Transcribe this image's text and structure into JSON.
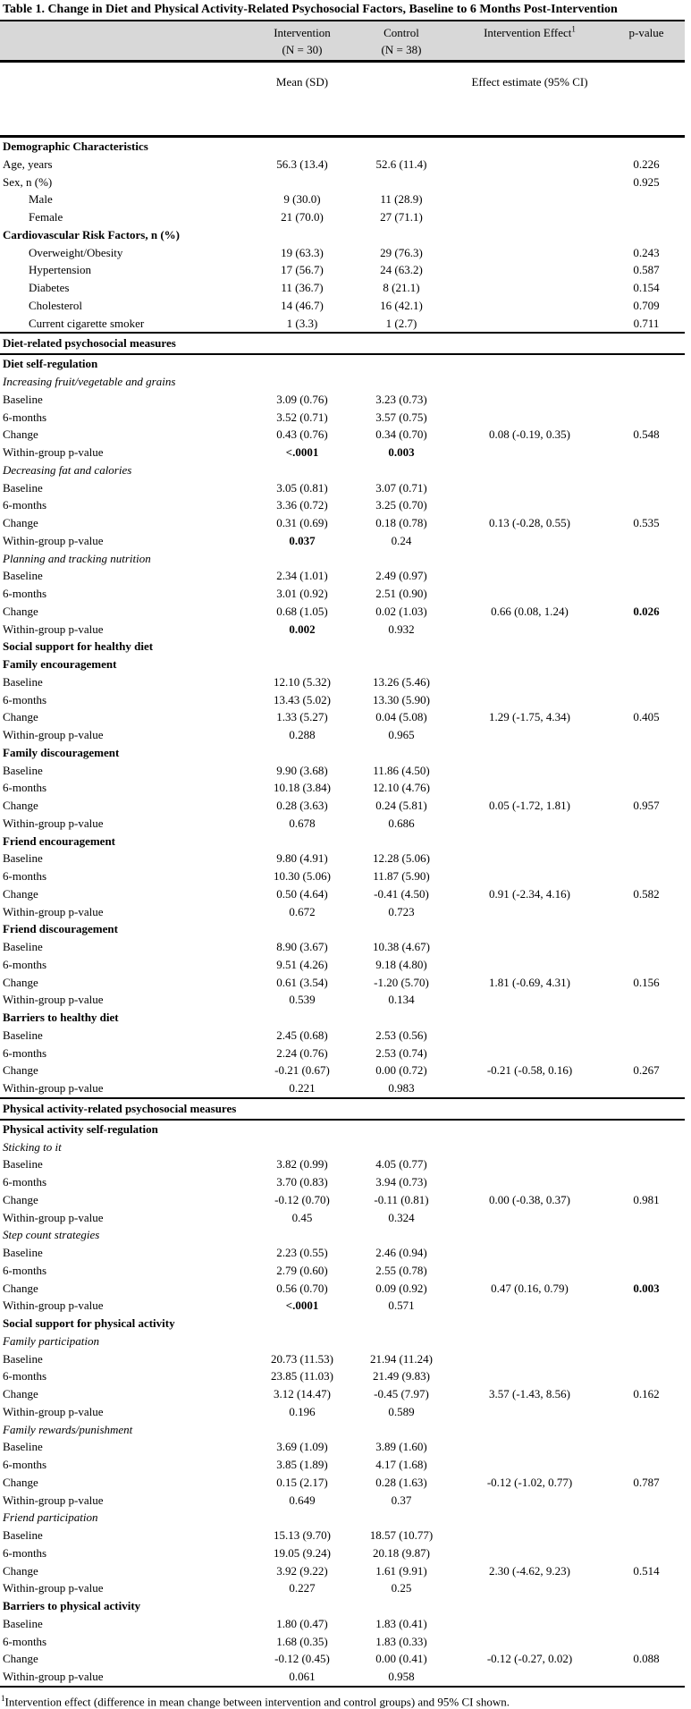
{
  "title": "Table 1. Change in Diet and Physical Activity-Related Psychosocial Factors, Baseline to 6 Months Post-Intervention",
  "colors": {
    "header_bg": "#d8d8d8",
    "border": "#000000",
    "text": "#000000",
    "page_bg": "#ffffff"
  },
  "header": {
    "intervention_line1": "Intervention",
    "intervention_line2": "(N = 30)",
    "control_line1": "Control",
    "control_line2": "(N = 38)",
    "effect_label": "Intervention Effect",
    "effect_sup": "1",
    "pvalue_label": "p-value",
    "mean_sd_label": "Mean (SD)",
    "effect_estimate_label": "Effect estimate (95% CI)"
  },
  "rows": [
    {
      "label": "Demographic Characteristics",
      "type": "bold"
    },
    {
      "label": "Age, years",
      "type": "plain",
      "i": "56.3 (13.4)",
      "c": "52.6 (11.4)",
      "p": "0.226"
    },
    {
      "label": "Sex, n (%)",
      "type": "plain",
      "p": "0.925"
    },
    {
      "label": "Male",
      "type": "indent",
      "i": "9 (30.0)",
      "c": "11 (28.9)"
    },
    {
      "label": "Female",
      "type": "indent",
      "i": "21 (70.0)",
      "c": "27 (71.1)"
    },
    {
      "label": "Cardiovascular Risk Factors, n (%)",
      "type": "bold"
    },
    {
      "label": "Overweight/Obesity",
      "type": "indent",
      "i": "19 (63.3)",
      "c": "29 (76.3)",
      "p": "0.243"
    },
    {
      "label": "Hypertension",
      "type": "indent",
      "i": "17 (56.7)",
      "c": "24 (63.2)",
      "p": "0.587"
    },
    {
      "label": "Diabetes",
      "type": "indent",
      "i": "11 (36.7)",
      "c": "8 (21.1)",
      "p": "0.154"
    },
    {
      "label": "Cholesterol",
      "type": "indent",
      "i": "14 (46.7)",
      "c": "16 (42.1)",
      "p": "0.709"
    },
    {
      "label": "Current cigarette smoker",
      "type": "indent",
      "i": "1 (3.3)",
      "c": "1 (2.7)",
      "p": "0.711"
    },
    {
      "label": "Diet-related psychosocial measures",
      "type": "section"
    },
    {
      "label": "Diet self-regulation",
      "type": "bold"
    },
    {
      "label": "Increasing fruit/vegetable and grains",
      "type": "italic"
    },
    {
      "label": "Baseline",
      "type": "plain",
      "i": "3.09 (0.76)",
      "c": "3.23 (0.73)"
    },
    {
      "label": "6-months",
      "type": "plain",
      "i": "3.52 (0.71)",
      "c": "3.57 (0.75)"
    },
    {
      "label": "Change",
      "type": "plain",
      "i": "0.43 (0.76)",
      "c": "0.34 (0.70)",
      "e": "0.08 (-0.19, 0.35)",
      "p": "0.548"
    },
    {
      "label": "Within-group p-value",
      "type": "plain",
      "i": "<.0001",
      "c": "0.003",
      "bi": true,
      "bc": true
    },
    {
      "label": "Decreasing fat and calories",
      "type": "italic"
    },
    {
      "label": "Baseline",
      "type": "plain",
      "i": "3.05 (0.81)",
      "c": "3.07 (0.71)"
    },
    {
      "label": "6-months",
      "type": "plain",
      "i": "3.36 (0.72)",
      "c": "3.25 (0.70)"
    },
    {
      "label": "Change",
      "type": "plain",
      "i": "0.31 (0.69)",
      "c": "0.18 (0.78)",
      "e": "0.13 (-0.28, 0.55)",
      "p": "0.535"
    },
    {
      "label": "Within-group p-value",
      "type": "plain",
      "i": "0.037",
      "c": "0.24",
      "bi": true
    },
    {
      "label": "Planning and tracking nutrition",
      "type": "italic"
    },
    {
      "label": "Baseline",
      "type": "plain",
      "i": "2.34 (1.01)",
      "c": "2.49 (0.97)"
    },
    {
      "label": "6-months",
      "type": "plain",
      "i": "3.01 (0.92)",
      "c": "2.51 (0.90)"
    },
    {
      "label": "Change",
      "type": "plain",
      "i": "0.68 (1.05)",
      "c": "0.02 (1.03)",
      "e": "0.66 (0.08, 1.24)",
      "p": "0.026",
      "bp": true
    },
    {
      "label": "Within-group p-value",
      "type": "plain",
      "i": "0.002",
      "c": "0.932",
      "bi": true
    },
    {
      "label": "Social support for healthy diet",
      "type": "bold"
    },
    {
      "label": "Family encouragement",
      "type": "bold"
    },
    {
      "label": "Baseline",
      "type": "plain",
      "i": "12.10 (5.32)",
      "c": "13.26 (5.46)"
    },
    {
      "label": "6-months",
      "type": "plain",
      "i": "13.43 (5.02)",
      "c": "13.30 (5.90)"
    },
    {
      "label": "Change",
      "type": "plain",
      "i": "1.33 (5.27)",
      "c": "0.04 (5.08)",
      "e": "1.29 (-1.75, 4.34)",
      "p": "0.405"
    },
    {
      "label": "Within-group p-value",
      "type": "plain",
      "i": "0.288",
      "c": "0.965"
    },
    {
      "label": "Family discouragement",
      "type": "bold"
    },
    {
      "label": "Baseline",
      "type": "plain",
      "i": "9.90 (3.68)",
      "c": "11.86 (4.50)"
    },
    {
      "label": "6-months",
      "type": "plain",
      "i": "10.18 (3.84)",
      "c": "12.10 (4.76)"
    },
    {
      "label": "Change",
      "type": "plain",
      "i": "0.28 (3.63)",
      "c": "0.24 (5.81)",
      "e": "0.05 (-1.72, 1.81)",
      "p": "0.957"
    },
    {
      "label": "Within-group p-value",
      "type": "plain",
      "i": "0.678",
      "c": "0.686"
    },
    {
      "label": "Friend encouragement",
      "type": "bold"
    },
    {
      "label": "Baseline",
      "type": "plain",
      "i": "9.80 (4.91)",
      "c": "12.28 (5.06)"
    },
    {
      "label": "6-months",
      "type": "plain",
      "i": "10.30 (5.06)",
      "c": "11.87 (5.90)"
    },
    {
      "label": "Change",
      "type": "plain",
      "i": "0.50 (4.64)",
      "c": "-0.41 (4.50)",
      "e": "0.91 (-2.34, 4.16)",
      "p": "0.582"
    },
    {
      "label": "Within-group p-value",
      "type": "plain",
      "i": "0.672",
      "c": "0.723"
    },
    {
      "label": "Friend discouragement",
      "type": "bold"
    },
    {
      "label": "Baseline",
      "type": "plain",
      "i": "8.90 (3.67)",
      "c": "10.38 (4.67)"
    },
    {
      "label": "6-months",
      "type": "plain",
      "i": "9.51 (4.26)",
      "c": "9.18 (4.80)"
    },
    {
      "label": "Change",
      "type": "plain",
      "i": "0.61 (3.54)",
      "c": "-1.20 (5.70)",
      "e": "1.81 (-0.69, 4.31)",
      "p": "0.156"
    },
    {
      "label": "Within-group p-value",
      "type": "plain",
      "i": "0.539",
      "c": "0.134"
    },
    {
      "label": "Barriers to healthy diet",
      "type": "bold"
    },
    {
      "label": "Baseline",
      "type": "plain",
      "i": "2.45 (0.68)",
      "c": "2.53 (0.56)"
    },
    {
      "label": "6-months",
      "type": "plain",
      "i": "2.24 (0.76)",
      "c": "2.53 (0.74)"
    },
    {
      "label": "Change",
      "type": "plain",
      "i": "-0.21 (0.67)",
      "c": "0.00 (0.72)",
      "e": "-0.21 (-0.58, 0.16)",
      "p": "0.267"
    },
    {
      "label": "Within-group p-value",
      "type": "plain",
      "i": "0.221",
      "c": "0.983"
    },
    {
      "label": "Physical activity-related psychosocial measures",
      "type": "section"
    },
    {
      "label": "Physical activity self-regulation",
      "type": "bold"
    },
    {
      "label": "Sticking to it",
      "type": "italic"
    },
    {
      "label": "Baseline",
      "type": "plain",
      "i": "3.82 (0.99)",
      "c": "4.05 (0.77)"
    },
    {
      "label": "6-months",
      "type": "plain",
      "i": "3.70 (0.83)",
      "c": "3.94 (0.73)"
    },
    {
      "label": "Change",
      "type": "plain",
      "i": "-0.12 (0.70)",
      "c": "-0.11 (0.81)",
      "e": "0.00 (-0.38, 0.37)",
      "p": "0.981"
    },
    {
      "label": "Within-group p-value",
      "type": "plain",
      "i": "0.45",
      "c": "0.324"
    },
    {
      "label": "Step count strategies",
      "type": "italic"
    },
    {
      "label": "Baseline",
      "type": "plain",
      "i": "2.23 (0.55)",
      "c": "2.46 (0.94)"
    },
    {
      "label": "6-months",
      "type": "plain",
      "i": "2.79 (0.60)",
      "c": "2.55 (0.78)"
    },
    {
      "label": "Change",
      "type": "plain",
      "i": "0.56 (0.70)",
      "c": "0.09 (0.92)",
      "e": "0.47 (0.16, 0.79)",
      "p": "0.003",
      "bp": true
    },
    {
      "label": "Within-group p-value",
      "type": "plain",
      "i": "<.0001",
      "c": "0.571",
      "bi": true
    },
    {
      "label": "Social support for physical activity",
      "type": "bold"
    },
    {
      "label": "Family participation",
      "type": "italic"
    },
    {
      "label": "Baseline",
      "type": "plain",
      "i": "20.73 (11.53)",
      "c": "21.94 (11.24)"
    },
    {
      "label": "6-months",
      "type": "plain",
      "i": "23.85 (11.03)",
      "c": "21.49 (9.83)"
    },
    {
      "label": "Change",
      "type": "plain",
      "i": "3.12 (14.47)",
      "c": "-0.45 (7.97)",
      "e": "3.57 (-1.43, 8.56)",
      "p": "0.162"
    },
    {
      "label": "Within-group p-value",
      "type": "plain",
      "i": "0.196",
      "c": "0.589"
    },
    {
      "label": "Family rewards/punishment",
      "type": "italic"
    },
    {
      "label": "Baseline",
      "type": "plain",
      "i": "3.69 (1.09)",
      "c": "3.89 (1.60)"
    },
    {
      "label": "6-months",
      "type": "plain",
      "i": "3.85 (1.89)",
      "c": "4.17 (1.68)"
    },
    {
      "label": "Change",
      "type": "plain",
      "i": "0.15 (2.17)",
      "c": "0.28 (1.63)",
      "e": "-0.12 (-1.02, 0.77)",
      "p": "0.787"
    },
    {
      "label": "Within-group p-value",
      "type": "plain",
      "i": "0.649",
      "c": "0.37"
    },
    {
      "label": "Friend participation",
      "type": "italic"
    },
    {
      "label": "Baseline",
      "type": "plain",
      "i": "15.13 (9.70)",
      "c": "18.57 (10.77)"
    },
    {
      "label": "6-months",
      "type": "plain",
      "i": "19.05 (9.24)",
      "c": "20.18 (9.87)"
    },
    {
      "label": "Change",
      "type": "plain",
      "i": "3.92 (9.22)",
      "c": "1.61 (9.91)",
      "e": "2.30 (-4.62, 9.23)",
      "p": "0.514"
    },
    {
      "label": "Within-group p-value",
      "type": "plain",
      "i": "0.227",
      "c": "0.25"
    },
    {
      "label": "Barriers to physical activity",
      "type": "bold"
    },
    {
      "label": "Baseline",
      "type": "plain",
      "i": "1.80 (0.47)",
      "c": "1.83 (0.41)"
    },
    {
      "label": "6-months",
      "type": "plain",
      "i": "1.68 (0.35)",
      "c": "1.83 (0.33)"
    },
    {
      "label": "Change",
      "type": "plain",
      "i": "-0.12 (0.45)",
      "c": "0.00 (0.41)",
      "e": "-0.12 (-0.27, 0.02)",
      "p": "0.088"
    },
    {
      "label": "Within-group p-value",
      "type": "plain",
      "i": "0.061",
      "c": "0.958"
    }
  ],
  "footnote": {
    "sup": "1",
    "text": "Intervention effect (difference in mean change between intervention and control groups) and 95% CI shown."
  }
}
